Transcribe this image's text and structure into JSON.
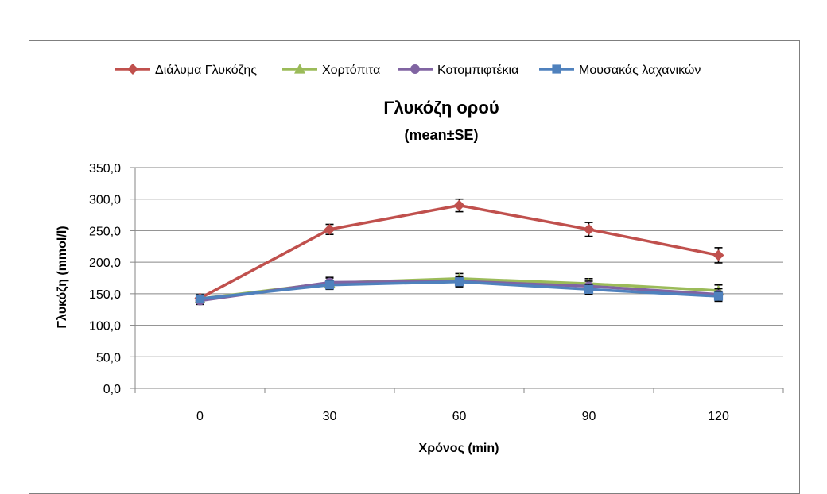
{
  "chart_data": {
    "type": "line",
    "title": "Γλυκόζη ορού",
    "subtitle": "(mean±SE)",
    "xlabel": "Χρόνος (min)",
    "ylabel": "Γλυκόζη (mmol/l)",
    "categories": [
      "0",
      "30",
      "60",
      "90",
      "120"
    ],
    "ylim": [
      0,
      350
    ],
    "yticks": [
      "0,0",
      "50,0",
      "100,0",
      "150,0",
      "200,0",
      "250,0",
      "300,0",
      "350,0"
    ],
    "grid": true,
    "legend_position": "top",
    "series": [
      {
        "name": "Διάλυμα Γλυκόζης",
        "color": "#c0504d",
        "marker": "diamond",
        "values": [
          143,
          252,
          290,
          252,
          211
        ],
        "errors": [
          6,
          8,
          10,
          11,
          12
        ]
      },
      {
        "name": "Χορτόπιτα",
        "color": "#9bbb59",
        "marker": "triangle",
        "values": [
          142,
          167,
          174,
          166,
          155
        ],
        "errors": [
          6,
          8,
          8,
          8,
          9
        ]
      },
      {
        "name": "Κοτομπιφτέκια",
        "color": "#8064a2",
        "marker": "circle",
        "values": [
          139,
          168,
          170,
          162,
          149
        ],
        "errors": [
          6,
          8,
          8,
          8,
          9
        ]
      },
      {
        "name": "Μουσακάς λαχανικών",
        "color": "#4f81bd",
        "marker": "square",
        "values": [
          142,
          164,
          169,
          157,
          146
        ],
        "errors": [
          6,
          7,
          8,
          8,
          8
        ]
      }
    ]
  }
}
